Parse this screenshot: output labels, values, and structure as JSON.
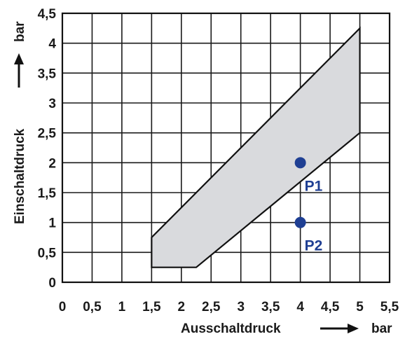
{
  "chart_data": {
    "type": "area",
    "grid": true,
    "xlim": [
      0,
      5.5
    ],
    "ylim": [
      0,
      4.5
    ],
    "x_ticks": [
      "0",
      "0,5",
      "1",
      "1,5",
      "2",
      "2,5",
      "3",
      "3,5",
      "4",
      "4,5",
      "5",
      "5,5"
    ],
    "y_ticks": [
      "0",
      "0,5",
      "1",
      "1,5",
      "2",
      "2,5",
      "3",
      "3,5",
      "4",
      "4,5"
    ],
    "xlabel": "Ausschaltdruck",
    "xunit": "bar",
    "ylabel": "Einschaltdruck",
    "yunit": "bar",
    "region": {
      "fill": "#d9dadd",
      "stroke": "#111111",
      "polygon": [
        [
          1.5,
          0.25
        ],
        [
          2.25,
          0.25
        ],
        [
          5.0,
          2.5
        ],
        [
          5.0,
          4.25
        ],
        [
          1.5,
          0.75
        ]
      ]
    },
    "points": [
      {
        "label": "P1",
        "x": 4.0,
        "y": 2.0
      },
      {
        "label": "P2",
        "x": 4.0,
        "y": 1.0
      }
    ],
    "point_color": "#1f3f93"
  }
}
